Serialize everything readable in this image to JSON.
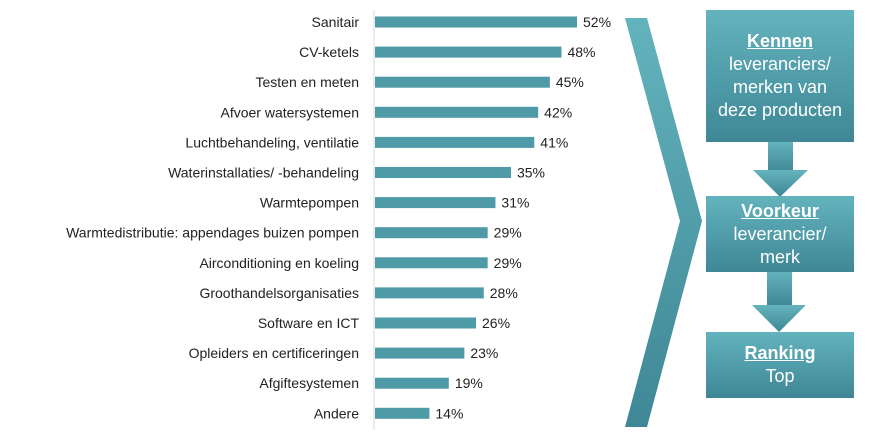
{
  "chart_data": {
    "type": "bar",
    "orientation": "horizontal",
    "categories": [
      "Sanitair",
      "CV-ketels",
      "Testen en meten",
      "Afvoer watersystemen",
      "Luchtbehandeling, ventilatie",
      "Waterinstallaties/ -behandeling",
      "Warmtepompen",
      "Warmtedistributie: appendages buizen pompen",
      "Airconditioning en koeling",
      "Groothandelsorganisaties",
      "Software en ICT",
      "Opleiders en certificeringen",
      "Afgiftesystemen",
      "Andere"
    ],
    "values": [
      52,
      48,
      45,
      42,
      41,
      35,
      31,
      29,
      29,
      28,
      26,
      23,
      19,
      14
    ],
    "labels": [
      "52%",
      "48%",
      "45%",
      "42%",
      "41%",
      "35%",
      "31%",
      "29%",
      "29%",
      "28%",
      "26%",
      "23%",
      "19%",
      "14%"
    ],
    "unit": "%",
    "bar_color": "#4e9aa6",
    "grid": false
  },
  "funnel": [
    {
      "title": "Kennen",
      "text": "leveranciers/ merken van deze producten"
    },
    {
      "title": "Voorkeur",
      "text": "leverancier/ merk"
    },
    {
      "title": "Ranking",
      "text": "Top"
    }
  ]
}
